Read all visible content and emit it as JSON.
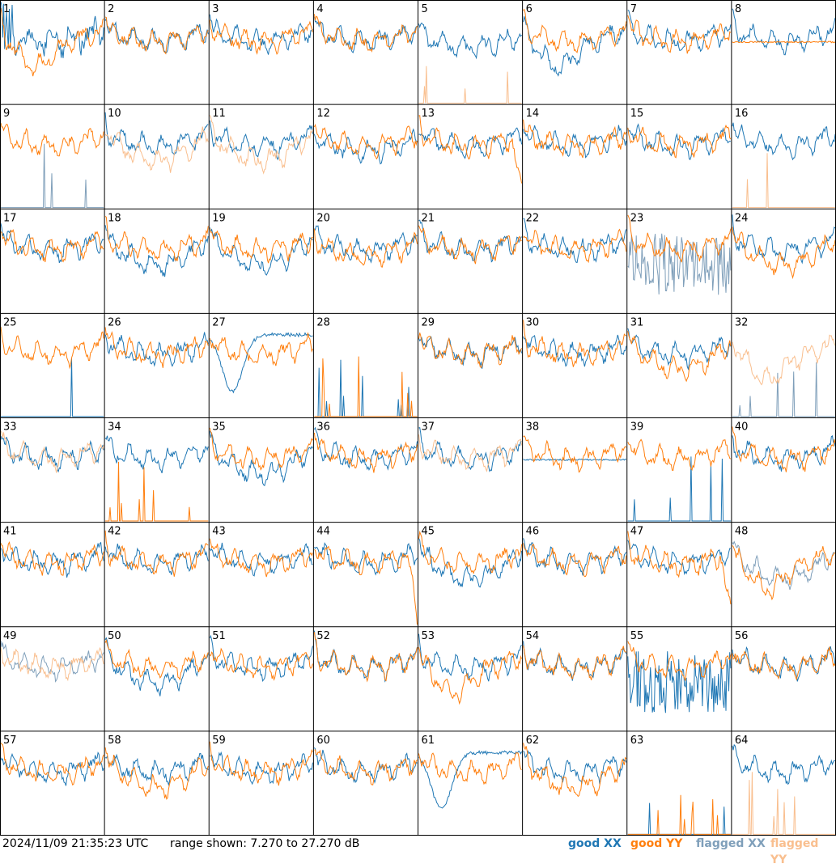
{
  "colors": {
    "good_xx": "#1f77b4",
    "good_yy": "#ff7f0e",
    "flagged_xx": "#7f9fba",
    "flagged_yy": "#f9bf8f",
    "grid": "#000000",
    "background": "#ffffff"
  },
  "footer": {
    "timestamp": "2024/11/09 21:35:23 UTC",
    "range_text": "range shown: 7.270 to 27.270 dB",
    "legend": {
      "good_xx": "good XX",
      "good_yy": "good YY",
      "flagged_xx": "flagged XX",
      "flagged_yy": "flagged YY"
    }
  },
  "chart_data": {
    "type": "line",
    "layout": "small-multiples 8x8",
    "y_range_db": [
      7.27,
      27.27
    ],
    "series_names": [
      "good XX",
      "good YY",
      "flagged XX",
      "flagged YY"
    ],
    "panels": [
      {
        "id": "1",
        "xx": "good",
        "yy": "good",
        "xx_shape": "noisy_top",
        "yy_shape": "dip_mid"
      },
      {
        "id": "2",
        "xx": "good",
        "yy": "good",
        "xx_shape": "normal",
        "yy_shape": "normal"
      },
      {
        "id": "3",
        "xx": "good",
        "yy": "good",
        "xx_shape": "normal",
        "yy_shape": "normal"
      },
      {
        "id": "4",
        "xx": "good",
        "yy": "good",
        "xx_shape": "normal",
        "yy_shape": "normal"
      },
      {
        "id": "5",
        "xx": "good",
        "yy": "flagged",
        "xx_shape": "normal_low",
        "yy_shape": "spikes"
      },
      {
        "id": "6",
        "xx": "good",
        "yy": "good",
        "xx_shape": "dip_mid",
        "yy_shape": "normal"
      },
      {
        "id": "7",
        "xx": "good",
        "yy": "good",
        "xx_shape": "normal",
        "yy_shape": "normal"
      },
      {
        "id": "8",
        "xx": "good",
        "yy": "good",
        "xx_shape": "normal",
        "yy_shape": "flat_high"
      },
      {
        "id": "9",
        "xx": "flagged",
        "yy": "good",
        "xx_shape": "spikes",
        "yy_shape": "normal"
      },
      {
        "id": "10",
        "xx": "good",
        "yy": "flagged",
        "xx_shape": "normal",
        "yy_shape": "dip_low"
      },
      {
        "id": "11",
        "xx": "good",
        "yy": "flagged",
        "xx_shape": "normal",
        "yy_shape": "dip_low"
      },
      {
        "id": "12",
        "xx": "good",
        "yy": "good",
        "xx_shape": "normal_low",
        "yy_shape": "normal"
      },
      {
        "id": "13",
        "xx": "good",
        "yy": "good",
        "xx_shape": "normal",
        "yy_shape": "drop_end"
      },
      {
        "id": "14",
        "xx": "good",
        "yy": "good",
        "xx_shape": "normal",
        "yy_shape": "normal"
      },
      {
        "id": "15",
        "xx": "good",
        "yy": "good",
        "xx_shape": "normal",
        "yy_shape": "normal"
      },
      {
        "id": "16",
        "xx": "good",
        "yy": "flagged",
        "xx_shape": "normal",
        "yy_shape": "spikes"
      },
      {
        "id": "17",
        "xx": "good",
        "yy": "good",
        "xx_shape": "normal",
        "yy_shape": "normal"
      },
      {
        "id": "18",
        "xx": "good",
        "yy": "good",
        "xx_shape": "dip_low",
        "yy_shape": "normal"
      },
      {
        "id": "19",
        "xx": "good",
        "yy": "good",
        "xx_shape": "dip_low",
        "yy_shape": "normal"
      },
      {
        "id": "20",
        "xx": "good",
        "yy": "good",
        "xx_shape": "normal",
        "yy_shape": "normal_low"
      },
      {
        "id": "21",
        "xx": "good",
        "yy": "good",
        "xx_shape": "normal",
        "yy_shape": "normal"
      },
      {
        "id": "22",
        "xx": "good",
        "yy": "good",
        "xx_shape": "normal",
        "yy_shape": "normal"
      },
      {
        "id": "23",
        "xx": "flagged",
        "yy": "good",
        "xx_shape": "noisy_wide",
        "yy_shape": "normal"
      },
      {
        "id": "24",
        "xx": "good",
        "yy": "good",
        "xx_shape": "normal",
        "yy_shape": "dip_low"
      },
      {
        "id": "25",
        "xx": "good",
        "yy": "good",
        "xx_shape": "spikes",
        "yy_shape": "normal"
      },
      {
        "id": "26",
        "xx": "good",
        "yy": "good",
        "xx_shape": "normal",
        "yy_shape": "normal"
      },
      {
        "id": "27",
        "xx": "good",
        "yy": "good",
        "xx_shape": "dip_deep",
        "yy_shape": "normal"
      },
      {
        "id": "28",
        "xx": "good",
        "yy": "good",
        "xx_shape": "spikes",
        "yy_shape": "spikes"
      },
      {
        "id": "29",
        "xx": "good",
        "yy": "good",
        "xx_shape": "normal",
        "yy_shape": "normal"
      },
      {
        "id": "30",
        "xx": "good",
        "yy": "good",
        "xx_shape": "normal",
        "yy_shape": "normal"
      },
      {
        "id": "31",
        "xx": "good",
        "yy": "good",
        "xx_shape": "normal",
        "yy_shape": "dip_low"
      },
      {
        "id": "32",
        "xx": "flagged",
        "yy": "flagged",
        "xx_shape": "spikes",
        "yy_shape": "dip_mid"
      },
      {
        "id": "33",
        "xx": "good",
        "yy": "flagged",
        "xx_shape": "normal",
        "yy_shape": "normal"
      },
      {
        "id": "34",
        "xx": "good",
        "yy": "good",
        "xx_shape": "normal",
        "yy_shape": "spikes"
      },
      {
        "id": "35",
        "xx": "good",
        "yy": "good",
        "xx_shape": "dip_low",
        "yy_shape": "normal"
      },
      {
        "id": "36",
        "xx": "good",
        "yy": "good",
        "xx_shape": "normal",
        "yy_shape": "normal"
      },
      {
        "id": "37",
        "xx": "good",
        "yy": "flagged",
        "xx_shape": "normal",
        "yy_shape": "normal"
      },
      {
        "id": "38",
        "xx": "good",
        "yy": "good",
        "xx_shape": "flat_high",
        "yy_shape": "normal"
      },
      {
        "id": "39",
        "xx": "good",
        "yy": "good",
        "xx_shape": "spikes",
        "yy_shape": "normal"
      },
      {
        "id": "40",
        "xx": "good",
        "yy": "good",
        "xx_shape": "normal",
        "yy_shape": "normal"
      },
      {
        "id": "41",
        "xx": "good",
        "yy": "good",
        "xx_shape": "normal",
        "yy_shape": "normal"
      },
      {
        "id": "42",
        "xx": "good",
        "yy": "good",
        "xx_shape": "normal",
        "yy_shape": "normal"
      },
      {
        "id": "43",
        "xx": "good",
        "yy": "good",
        "xx_shape": "normal",
        "yy_shape": "normal"
      },
      {
        "id": "44",
        "xx": "good",
        "yy": "good",
        "xx_shape": "normal",
        "yy_shape": "drop_end"
      },
      {
        "id": "45",
        "xx": "good",
        "yy": "good",
        "xx_shape": "dip_low",
        "yy_shape": "normal"
      },
      {
        "id": "46",
        "xx": "good",
        "yy": "good",
        "xx_shape": "normal",
        "yy_shape": "normal"
      },
      {
        "id": "47",
        "xx": "good",
        "yy": "good",
        "xx_shape": "normal",
        "yy_shape": "drop_end"
      },
      {
        "id": "48",
        "xx": "flagged",
        "yy": "good",
        "xx_shape": "dip_low",
        "yy_shape": "dip_mid"
      },
      {
        "id": "49",
        "xx": "flagged",
        "yy": "flagged",
        "xx_shape": "normal",
        "yy_shape": "normal"
      },
      {
        "id": "50",
        "xx": "good",
        "yy": "good",
        "xx_shape": "dip_low",
        "yy_shape": "normal"
      },
      {
        "id": "51",
        "xx": "good",
        "yy": "good",
        "xx_shape": "normal",
        "yy_shape": "normal"
      },
      {
        "id": "52",
        "xx": "good",
        "yy": "good",
        "xx_shape": "normal",
        "yy_shape": "normal"
      },
      {
        "id": "53",
        "xx": "good",
        "yy": "good",
        "xx_shape": "normal",
        "yy_shape": "dip_mid"
      },
      {
        "id": "54",
        "xx": "good",
        "yy": "good",
        "xx_shape": "normal",
        "yy_shape": "normal"
      },
      {
        "id": "55",
        "xx": "good",
        "yy": "good",
        "xx_shape": "noisy_wide",
        "yy_shape": "normal"
      },
      {
        "id": "56",
        "xx": "good",
        "yy": "good",
        "xx_shape": "normal",
        "yy_shape": "normal"
      },
      {
        "id": "57",
        "xx": "good",
        "yy": "good",
        "xx_shape": "normal",
        "yy_shape": "normal"
      },
      {
        "id": "58",
        "xx": "good",
        "yy": "good",
        "xx_shape": "normal",
        "yy_shape": "dip_low"
      },
      {
        "id": "59",
        "xx": "good",
        "yy": "good",
        "xx_shape": "normal",
        "yy_shape": "normal"
      },
      {
        "id": "60",
        "xx": "good",
        "yy": "good",
        "xx_shape": "normal",
        "yy_shape": "normal"
      },
      {
        "id": "61",
        "xx": "good",
        "yy": "good",
        "xx_shape": "dip_deep",
        "yy_shape": "normal"
      },
      {
        "id": "62",
        "xx": "good",
        "yy": "good",
        "xx_shape": "normal",
        "yy_shape": "dip_low"
      },
      {
        "id": "63",
        "xx": "good",
        "yy": "good",
        "xx_shape": "spikes",
        "yy_shape": "spikes"
      },
      {
        "id": "64",
        "xx": "good",
        "yy": "flagged",
        "xx_shape": "normal",
        "yy_shape": "spikes"
      }
    ]
  }
}
